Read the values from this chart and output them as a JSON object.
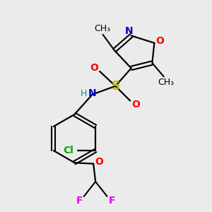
{
  "bg_color": "#ebebeb",
  "colors": {
    "N": "#0000CC",
    "O": "#FF0000",
    "S": "#BBBB00",
    "Cl": "#00AA00",
    "F": "#EE00EE",
    "H": "#009999",
    "C": "#000000"
  },
  "fs": 10,
  "fs_sm": 9
}
